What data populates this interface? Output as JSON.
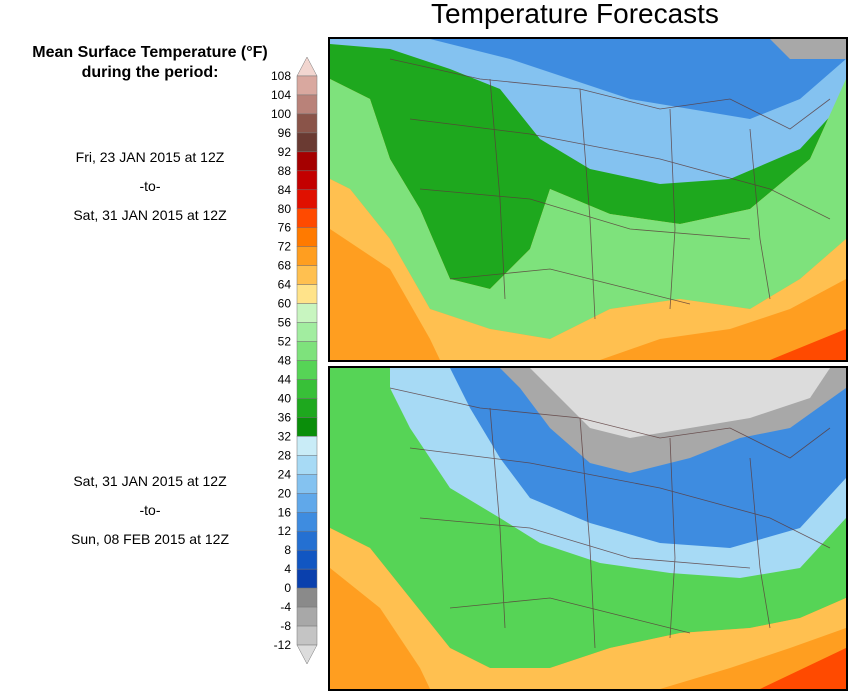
{
  "header": {
    "title": "Temperature Forecasts"
  },
  "legend": {
    "subtitle_line1": "Mean Surface Temperature (°F)",
    "subtitle_line2": "during the period:",
    "levels": [
      108,
      104,
      100,
      96,
      92,
      88,
      84,
      80,
      76,
      72,
      68,
      64,
      60,
      56,
      52,
      48,
      44,
      40,
      36,
      32,
      28,
      24,
      20,
      16,
      12,
      8,
      4,
      0,
      -4,
      -8,
      -12
    ],
    "colors": [
      "#f2d6d0",
      "#d9a89f",
      "#b98279",
      "#8a5449",
      "#6a3a32",
      "#a50000",
      "#c30000",
      "#e01000",
      "#ff4a00",
      "#ff7a00",
      "#ff9e20",
      "#ffc050",
      "#ffe38a",
      "#c8f5c0",
      "#a2eda0",
      "#7ee27c",
      "#56d456",
      "#38c038",
      "#1ea81e",
      "#0a8e0a",
      "#c9ecf7",
      "#a7daf5",
      "#84c2f0",
      "#60a8ea",
      "#3e8ce0",
      "#2470d2",
      "#1156c2",
      "#0a40ad",
      "#8a8a8a",
      "#a8a8a8",
      "#c4c4c4",
      "#dcdcdc"
    ]
  },
  "panels": [
    {
      "period_start": "Fri, 23 JAN 2015 at 12Z",
      "period_sep": "-to-",
      "period_end": "Sat, 31 JAN 2015 at 12Z"
    },
    {
      "period_start": "Sat, 31 JAN 2015 at 12Z",
      "period_sep": "-to-",
      "period_end": "Sun, 08 FEB 2015 at 12Z"
    }
  ]
}
